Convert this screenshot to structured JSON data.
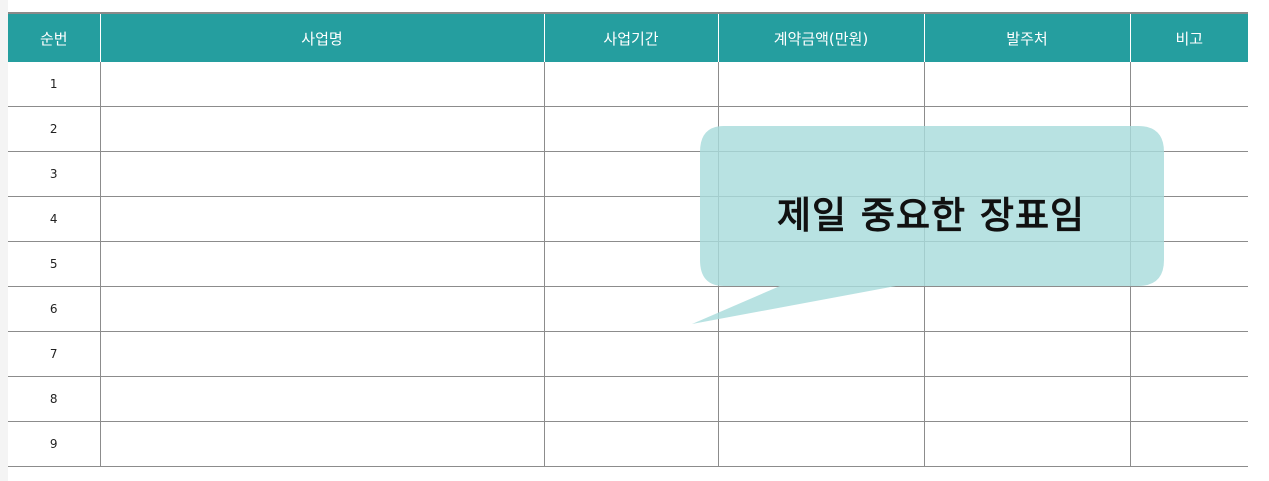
{
  "table": {
    "headers": [
      "순번",
      "사업명",
      "사업기간",
      "계약금액(만원)",
      "발주처",
      "비고"
    ],
    "rows": [
      [
        "1",
        "",
        "",
        "",
        "",
        ""
      ],
      [
        "2",
        "",
        "",
        "",
        "",
        ""
      ],
      [
        "3",
        "",
        "",
        "",
        "",
        ""
      ],
      [
        "4",
        "",
        "",
        "",
        "",
        ""
      ],
      [
        "5",
        "",
        "",
        "",
        "",
        ""
      ],
      [
        "6",
        "",
        "",
        "",
        "",
        ""
      ],
      [
        "7",
        "",
        "",
        "",
        "",
        ""
      ],
      [
        "8",
        "",
        "",
        "",
        "",
        ""
      ],
      [
        "9",
        "",
        "",
        "",
        "",
        ""
      ]
    ]
  },
  "callout": {
    "text": "제일 중요한 장표임"
  },
  "colors": {
    "header_bg": "#259e9f",
    "header_text": "#ffffff",
    "callout_fill": "#a8dcdc",
    "grid_line": "#8c8c8c"
  }
}
